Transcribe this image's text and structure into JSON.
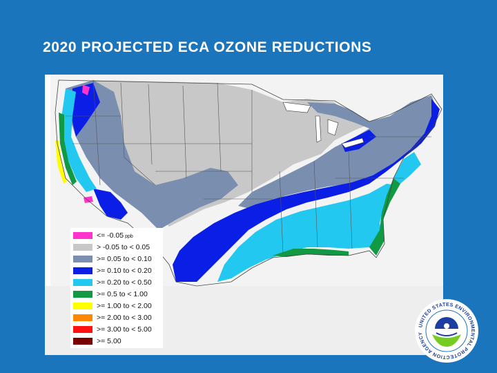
{
  "slide": {
    "title": "2020 PROJECTED ECA OZONE REDUCTIONS"
  },
  "legend": {
    "unit": "ppb",
    "items": [
      {
        "label": "<= -0.05",
        "color": "#ff33cc"
      },
      {
        "label": "> -0.05 to < 0.05",
        "color": "#c8c8c8"
      },
      {
        "label": ">= 0.05 to < 0.10",
        "color": "#7a8fb0"
      },
      {
        "label": ">= 0.10 to < 0.20",
        "color": "#0a1ee6"
      },
      {
        "label": ">= 0.20 to < 0.50",
        "color": "#22c8f0"
      },
      {
        "label": ">= 0.5 to < 1.00",
        "color": "#119944"
      },
      {
        "label": ">= 1.00 to < 2.00",
        "color": "#ffff00"
      },
      {
        "label": ">= 2.00 to < 3.00",
        "color": "#ff8800"
      },
      {
        "label": ">= 3.00 to < 5.00",
        "color": "#ff1111"
      },
      {
        "label": ">= 5.00",
        "color": "#7a0000"
      }
    ]
  },
  "seal": {
    "text": "UNITED STATES ENVIRONMENTAL PROTECTION AGENCY",
    "ring_color": "#ffffff",
    "emblem_colors": {
      "top": "#1b3fa0",
      "bottom": "#77cc22"
    }
  }
}
